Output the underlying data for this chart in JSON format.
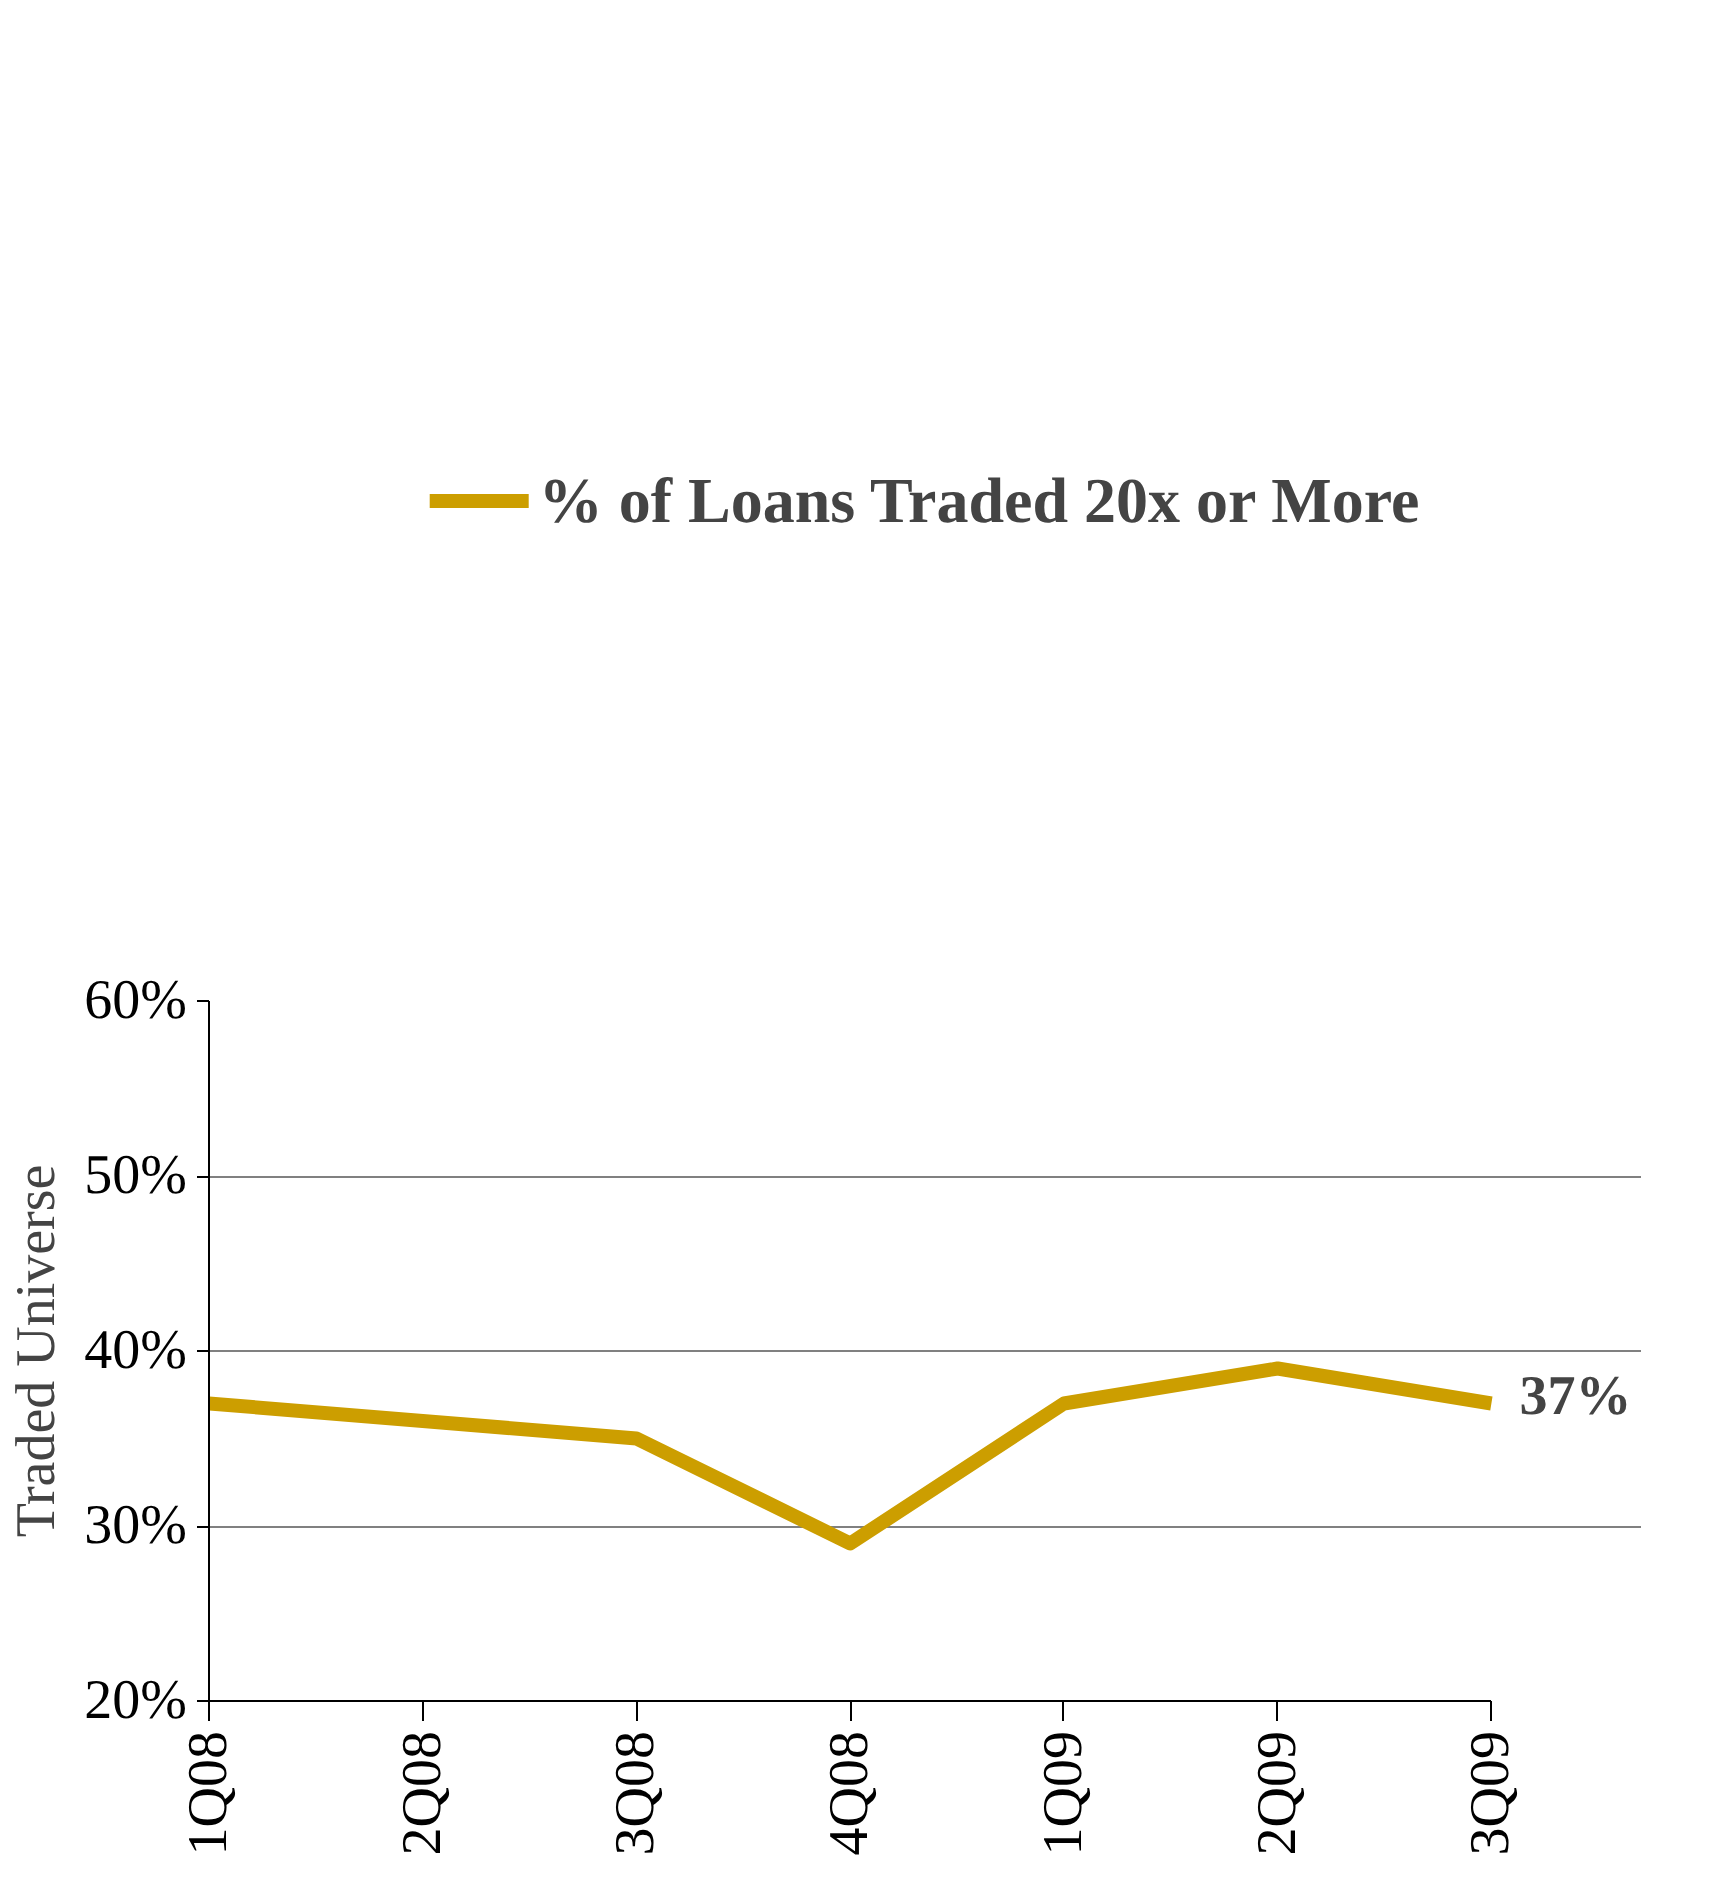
{
  "chart_data": {
    "type": "line",
    "ylabel": "Traded Universe",
    "categories": [
      "1Q08",
      "2Q08",
      "3Q08",
      "4Q08",
      "1Q09",
      "2Q09",
      "3Q09"
    ],
    "series": [
      {
        "name": "% of Loans Traded 20x or More",
        "color": "#cc9e00",
        "values": [
          37,
          36,
          35,
          29,
          37,
          39,
          37
        ],
        "value_labels": [
          null,
          null,
          null,
          null,
          null,
          null,
          "37%"
        ]
      }
    ],
    "ylim": [
      20,
      60
    ],
    "yticks": [
      {
        "value": 20,
        "label": "20%"
      },
      {
        "value": 30,
        "label": "30%"
      },
      {
        "value": 40,
        "label": "40%"
      },
      {
        "value": 50,
        "label": "50%"
      },
      {
        "value": 60,
        "label": "60%"
      }
    ],
    "grid": "y",
    "legend": "top"
  }
}
